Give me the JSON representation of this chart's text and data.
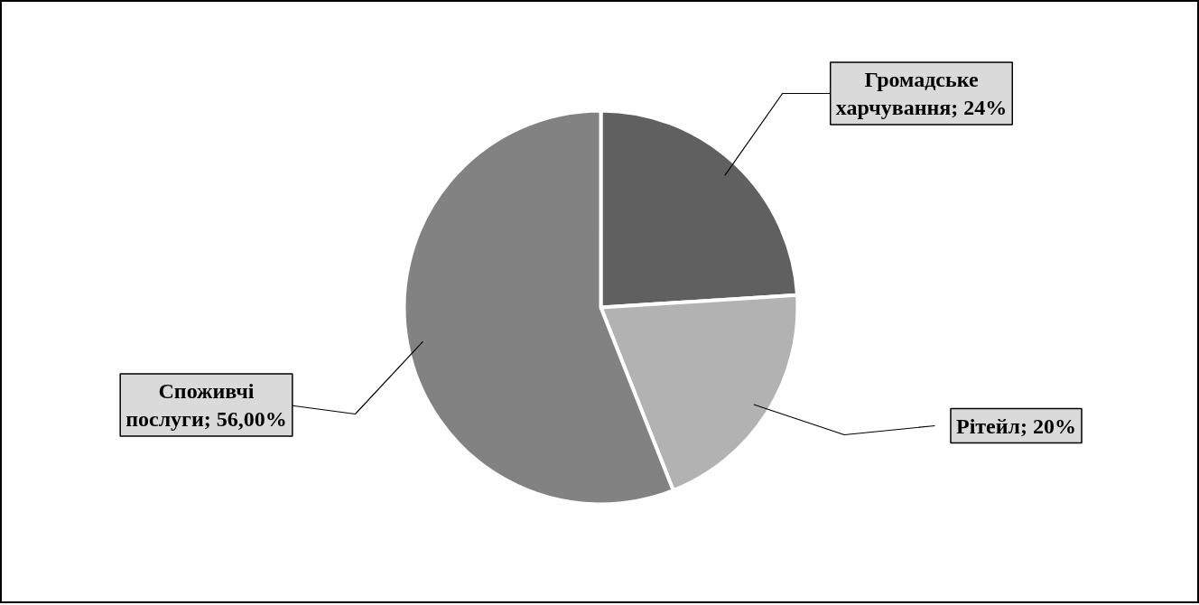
{
  "chart_data": {
    "type": "pie",
    "categories": [
      "Громадське харчування",
      "Рітейл",
      "Споживчі послуги"
    ],
    "values": [
      24,
      20,
      56
    ],
    "colors": [
      "#606060",
      "#b2b2b2",
      "#828282"
    ],
    "value_labels": [
      "24%",
      "20%",
      "56,00%"
    ]
  }
}
